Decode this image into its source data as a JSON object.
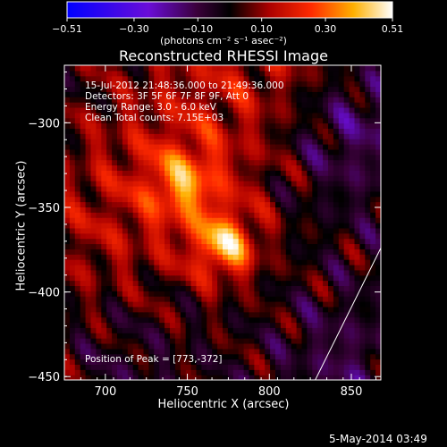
{
  "chart_data": {
    "type": "heatmap",
    "title": "Reconstructed RHESSI Image",
    "xlabel": "Heliocentric X (arcsec)",
    "ylabel": "Heliocentric Y (arcsec)",
    "xlim": [
      675,
      868
    ],
    "ylim": [
      -452,
      -266
    ],
    "xticks": [
      700,
      750,
      800,
      850
    ],
    "yticks": [
      -300,
      -350,
      -400,
      -450
    ],
    "colorbar": {
      "title": "(photons cm⁻² s⁻¹ asec⁻²)",
      "range": [
        -0.51,
        0.51
      ],
      "ticks": [
        -0.51,
        -0.3,
        -0.1,
        0.1,
        0.3,
        0.51
      ],
      "tick_labels": [
        "−0.51",
        "−0.30",
        "−0.10",
        "0.10",
        "0.30",
        "0.51"
      ],
      "colormap": "blue-purple-red-orange-yellow-white"
    },
    "peak": [
      773,
      -372
    ],
    "peak_value": 0.51,
    "limb_line": [
      [
        828,
        -452
      ],
      [
        868,
        -374
      ]
    ],
    "annotations": {
      "info": [
        "15-Jul-2012 21:48:36.000 to 21:49:36.000",
        "Detectors: 3F 5F 6F 7F 8F 9F, Att 0",
        "Energy Range: 3.0 - 6.0 keV",
        "Clean     Total counts: 7.15E+03"
      ],
      "peak_text": "Position of Peak = [773,-372]",
      "timestamp": "5-May-2014 03:49"
    }
  }
}
